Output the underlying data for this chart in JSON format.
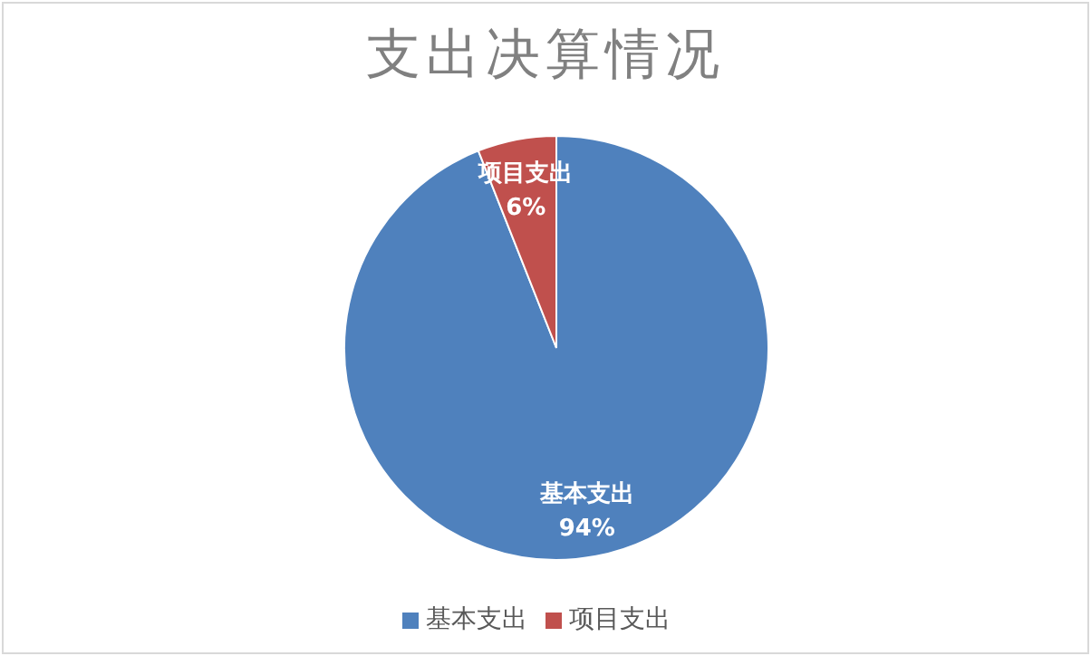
{
  "chart_data": {
    "type": "pie",
    "title": "支出决算情况",
    "categories": [
      "基本支出",
      "项目支出"
    ],
    "values": [
      94,
      6
    ],
    "colors": [
      "#4f81bd",
      "#c0504d"
    ],
    "value_labels": [
      "94%",
      "6%"
    ],
    "legend": "bottom"
  }
}
